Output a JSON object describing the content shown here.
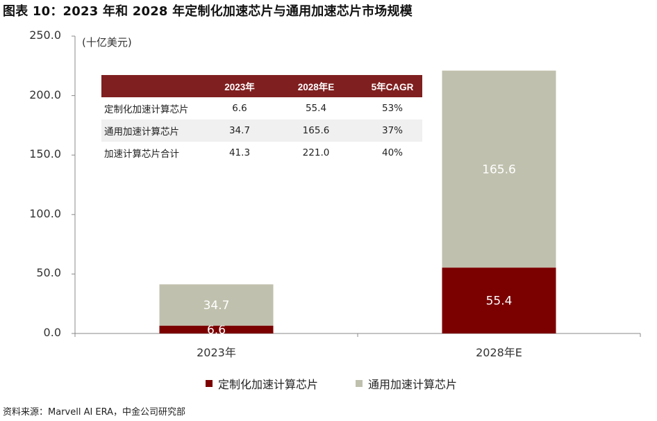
{
  "title": "图表 10：2023 年和 2028 年定制化加速芯片与通用加速芯片市场规模",
  "unit_label": "(十亿美元)",
  "source": "资料来源：Marvell AI ERA，中金公司研究部",
  "colors": {
    "custom": "#7b0000",
    "general": "#c0c0ae",
    "table_header": "#7f1f1f"
  },
  "chart_data": {
    "type": "bar",
    "stacked": true,
    "categories": [
      "2023年",
      "2028年E"
    ],
    "series": [
      {
        "name": "定制化加速计算芯片",
        "values": [
          6.6,
          55.4
        ],
        "color": "#7b0000",
        "labels": [
          "6.6",
          "55.4"
        ]
      },
      {
        "name": "通用加速计算芯片",
        "values": [
          34.7,
          165.6
        ],
        "color": "#c0c0ae",
        "labels": [
          "34.7",
          "165.6"
        ]
      }
    ],
    "ylim": [
      0,
      250
    ],
    "yticks": [
      "0.0",
      "50.0",
      "100.0",
      "150.0",
      "200.0",
      "250.0"
    ],
    "ytick_values": [
      0,
      50,
      100,
      150,
      200,
      250
    ],
    "legend_position": "bottom",
    "grid": false
  },
  "table": {
    "headers": [
      "",
      "2023年",
      "2028年E",
      "5年CAGR"
    ],
    "rows": [
      [
        "定制化加速计算芯片",
        "6.6",
        "55.4",
        "53%"
      ],
      [
        "通用加速计算芯片",
        "34.7",
        "165.6",
        "37%"
      ],
      [
        "加速计算芯片合计",
        "41.3",
        "221.0",
        "40%"
      ]
    ]
  }
}
